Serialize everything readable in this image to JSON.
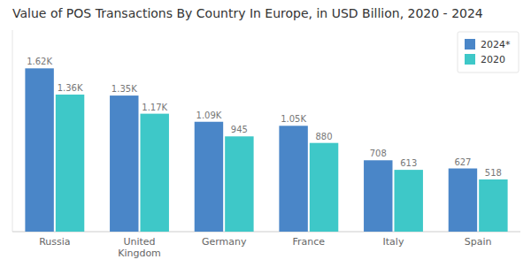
{
  "chart_data": {
    "type": "bar",
    "title": "Value of POS Transactions By Country In Europe, in USD Billion, 2020 - 2024",
    "categories": [
      "Russia",
      "United\nKingdom",
      "Germany",
      "France",
      "Italy",
      "Spain"
    ],
    "series": [
      {
        "name": "2024*",
        "color": "#4A86C8",
        "values": [
          1620,
          1350,
          1090,
          1050,
          708,
          627
        ],
        "value_labels": [
          "1.62K",
          "1.35K",
          "1.09K",
          "1.05K",
          "708",
          "627"
        ]
      },
      {
        "name": "2020",
        "color": "#3EC8C8",
        "values": [
          1360,
          1170,
          945,
          880,
          613,
          518
        ],
        "value_labels": [
          "1.36K",
          "1.17K",
          "945",
          "880",
          "613",
          "518"
        ]
      }
    ],
    "ylim": [
      0,
      2000
    ],
    "grid": false,
    "legend": "upper right",
    "data_labels": true,
    "tick_labels": "x"
  }
}
